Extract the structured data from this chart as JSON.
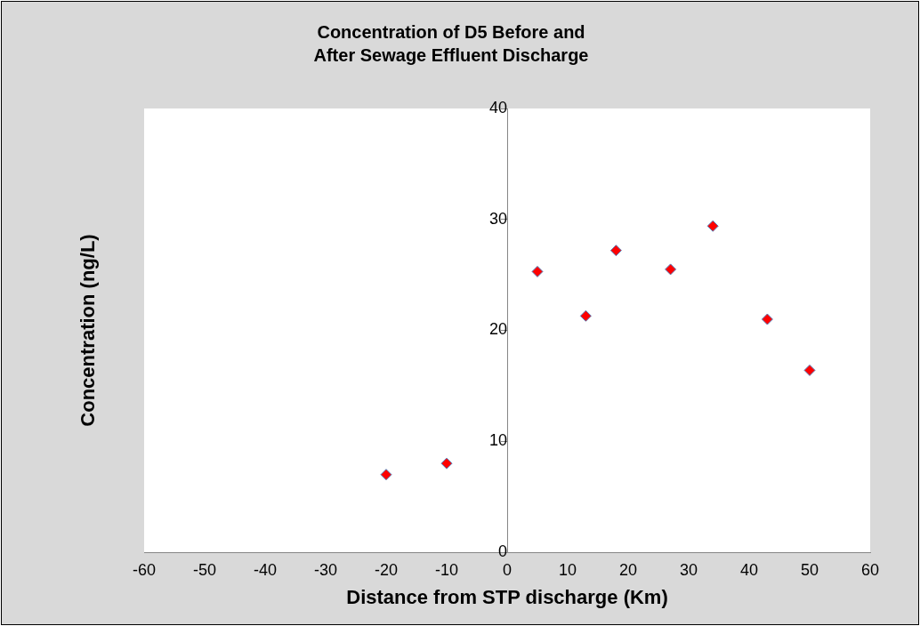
{
  "chart_data": {
    "type": "scatter",
    "title": "Concentration of D5 Before and\nAfter Sewage Effluent Discharge",
    "xlabel": "Distance from STP discharge (Km)",
    "ylabel": "Concentration (ng/L)",
    "x": [
      -20,
      -10,
      5,
      13,
      18,
      27,
      34,
      43,
      50
    ],
    "series": [
      {
        "color": "#ff0000",
        "values": [
          7,
          8,
          25.3,
          21.3,
          27.2,
          25.5,
          29.4,
          21.0,
          16.4
        ]
      }
    ],
    "marker": "diamond",
    "xlim": [
      -60,
      60
    ],
    "xticks": [
      -60,
      -50,
      -40,
      -30,
      -20,
      -10,
      0,
      10,
      20,
      30,
      40,
      50,
      60
    ],
    "ylim": [
      0,
      40
    ],
    "yticks": [
      0,
      10,
      20,
      30,
      40
    ],
    "grid": false,
    "legend": false
  }
}
